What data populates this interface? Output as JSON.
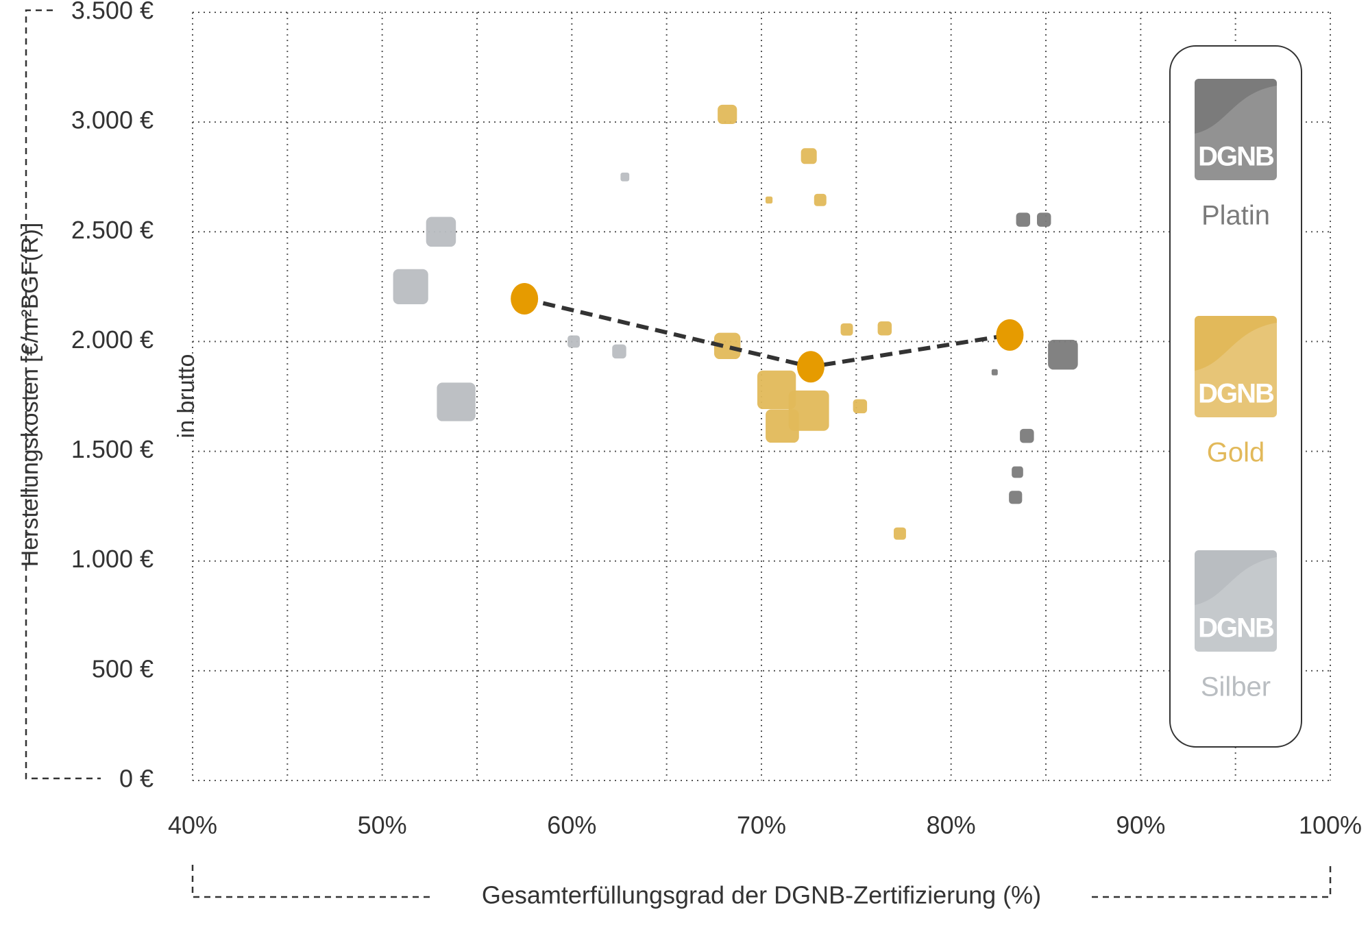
{
  "chart_data": {
    "type": "scatter",
    "y_label": "Herstellungskosten [€/m²BGF(R)]",
    "y_sublabel": "in brutto",
    "x_label": "Gesamterfüllungsgrad der DGNB-Zertifizierung (%)",
    "xlim": [
      40,
      100
    ],
    "xticks": [
      {
        "value": 40,
        "label": "40%"
      },
      {
        "value": 50,
        "label": "50%"
      },
      {
        "value": 60,
        "label": "60%"
      },
      {
        "value": 70,
        "label": "70%"
      },
      {
        "value": 80,
        "label": "80%"
      },
      {
        "value": 90,
        "label": "90%"
      },
      {
        "value": 100,
        "label": "100%"
      }
    ],
    "xgrid": [
      40,
      45,
      50,
      55,
      60,
      65,
      70,
      75,
      80,
      85,
      90,
      95,
      100
    ],
    "ylim": [
      0,
      3500
    ],
    "yticks": [
      {
        "value": 0,
        "label": "0 €"
      },
      {
        "value": 500,
        "label": "500 €"
      },
      {
        "value": 1000,
        "label": "1.000 €"
      },
      {
        "value": 1500,
        "label": "1.500 €"
      },
      {
        "value": 2000,
        "label": "2.000 €"
      },
      {
        "value": 2500,
        "label": "2.500 €"
      },
      {
        "value": 3000,
        "label": "3.000 €"
      },
      {
        "value": 3500,
        "label": "3.500 €"
      }
    ],
    "grid": true,
    "legend_position": "right",
    "legend_logo": "DGNB",
    "series": [
      {
        "name": "Platin",
        "color": "#7b7b7b",
        "x": [
          83.8,
          84.9,
          82.3,
          85.9,
          84.0,
          83.5,
          83.4
        ],
        "values": [
          2555,
          2555,
          1860,
          1940,
          1570,
          1405,
          1290
        ],
        "sizes": [
          16,
          16,
          7,
          34,
          16,
          13,
          15
        ]
      },
      {
        "name": "Gold",
        "color": "#e2b95a",
        "x": [
          68.2,
          72.5,
          70.4,
          73.1,
          68.2,
          70.8,
          71.1,
          72.5,
          74.5,
          76.5,
          75.2,
          77.3
        ],
        "values": [
          3035,
          2845,
          2645,
          2645,
          1980,
          1780,
          1615,
          1685,
          2055,
          2060,
          1705,
          1125
        ],
        "sizes": [
          22,
          18,
          8,
          14,
          30,
          44,
          38,
          46,
          14,
          16,
          16,
          14
        ]
      },
      {
        "name": "Silber",
        "color": "#b9bdc1",
        "x": [
          51.5,
          53.1,
          53.9,
          60.1,
          62.5,
          62.8
        ],
        "values": [
          2250,
          2500,
          1725,
          2000,
          1955,
          2750
        ],
        "sizes": [
          40,
          34,
          44,
          14,
          16,
          10
        ]
      }
    ],
    "mean_line": {
      "color": "#e69b00",
      "line_color": "#333333",
      "x": [
        57.5,
        72.6,
        83.1
      ],
      "values": [
        2195,
        1885,
        2030
      ]
    }
  }
}
